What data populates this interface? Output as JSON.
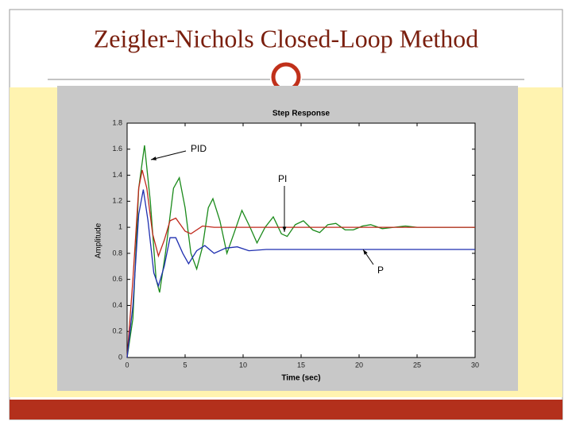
{
  "slide_title": "Zeigler-Nichols Closed-Loop Method",
  "chart_data": {
    "type": "line",
    "title": "Step Response",
    "x_label": "Time (sec)",
    "y_label": "Amplitude",
    "xlim": [
      0,
      30
    ],
    "ylim": [
      0,
      1.8
    ],
    "xticks": [
      0,
      5,
      10,
      15,
      20,
      25,
      30
    ],
    "yticks": [
      0,
      0.2,
      0.4,
      0.6,
      0.8,
      1,
      1.2,
      1.4,
      1.6,
      1.8
    ],
    "annotations": [
      "PID",
      "PI",
      "P"
    ],
    "series": [
      {
        "color": "#1a8a1a",
        "x": [
          0,
          0.5,
          1,
          1.5,
          2,
          2.5,
          2.8,
          3.3,
          4,
          4.5,
          5,
          5.5,
          6,
          6.5,
          7,
          7.4,
          8,
          8.6,
          9.2,
          9.9,
          10.6,
          11.2,
          11.9,
          12.6,
          13.3,
          13.8,
          14.5,
          15.2,
          16,
          16.6,
          17.3,
          18,
          18.8,
          19.5,
          20.3,
          21,
          22,
          23,
          24,
          25,
          30
        ],
        "values": [
          0,
          0.3,
          1.3,
          1.63,
          1.2,
          0.6,
          0.5,
          0.8,
          1.3,
          1.38,
          1.15,
          0.8,
          0.68,
          0.85,
          1.15,
          1.22,
          1.05,
          0.8,
          0.95,
          1.13,
          1.0,
          0.88,
          1.0,
          1.08,
          0.95,
          0.93,
          1.02,
          1.05,
          0.98,
          0.96,
          1.02,
          1.03,
          0.98,
          0.98,
          1.01,
          1.02,
          0.99,
          1.0,
          1.01,
          1.0,
          1.0
        ]
      },
      {
        "color": "#c0281c",
        "x": [
          0,
          0.5,
          1,
          1.3,
          1.7,
          2.2,
          2.7,
          3.2,
          3.7,
          4.2,
          5,
          5.5,
          6.5,
          7.5,
          30
        ],
        "values": [
          0,
          0.6,
          1.3,
          1.44,
          1.3,
          0.95,
          0.78,
          0.9,
          1.05,
          1.07,
          0.97,
          0.95,
          1.01,
          1.0,
          1.0
        ]
      },
      {
        "color": "#1f2fb0",
        "x": [
          0,
          0.5,
          1,
          1.4,
          1.8,
          2.3,
          2.7,
          3.2,
          3.7,
          4.2,
          4.8,
          5.3,
          6,
          6.7,
          7.5,
          8.5,
          9.5,
          10.5,
          12,
          30
        ],
        "values": [
          0,
          0.4,
          1.1,
          1.29,
          1.05,
          0.65,
          0.55,
          0.7,
          0.92,
          0.92,
          0.8,
          0.72,
          0.82,
          0.86,
          0.8,
          0.84,
          0.85,
          0.82,
          0.83,
          0.83
        ]
      }
    ]
  }
}
